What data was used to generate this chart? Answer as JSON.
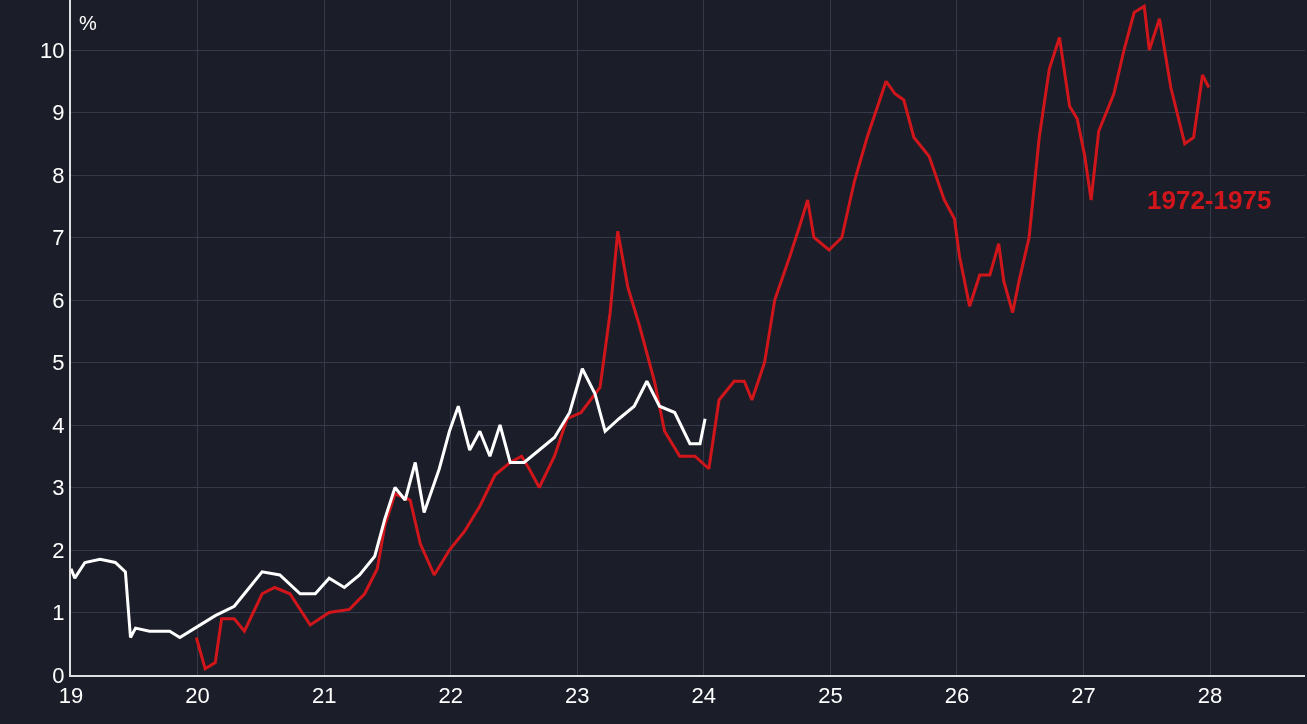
{
  "chart_data": {
    "type": "line",
    "ylabel": "%",
    "xlim": [
      19,
      28.75
    ],
    "ylim": [
      0,
      10.8
    ],
    "xticks": [
      19,
      20,
      21,
      22,
      23,
      24,
      25,
      26,
      27,
      28
    ],
    "yticks": [
      0,
      1,
      2,
      3,
      4,
      5,
      6,
      7,
      8,
      9,
      10
    ],
    "grid": true,
    "legend": false,
    "marker": "none",
    "line_style": "solid",
    "series": [
      {
        "name": "1972-1975",
        "color": "#d0161b",
        "x": [
          19.99,
          20.06,
          20.14,
          20.19,
          20.29,
          20.37,
          20.51,
          20.61,
          20.73,
          20.89,
          21.04,
          21.2,
          21.32,
          21.42,
          21.48,
          21.56,
          21.68,
          21.76,
          21.87,
          21.99,
          22.11,
          22.23,
          22.35,
          22.47,
          22.56,
          22.62,
          22.7,
          22.82,
          22.92,
          23.03,
          23.18,
          23.26,
          23.32,
          23.4,
          23.49,
          23.61,
          23.69,
          23.81,
          23.93,
          24.04,
          24.12,
          24.24,
          24.32,
          24.38,
          24.48,
          24.56,
          24.68,
          24.76,
          24.82,
          24.87,
          24.99,
          25.09,
          25.19,
          25.29,
          25.39,
          25.44,
          25.51,
          25.58,
          25.66,
          25.78,
          25.9,
          25.98,
          26.02,
          26.1,
          26.18,
          26.26,
          26.33,
          26.37,
          26.44,
          26.49,
          26.57,
          26.65,
          26.73,
          26.81,
          26.89,
          26.95,
          27.01,
          27.06,
          27.12,
          27.24,
          27.32,
          27.4,
          27.48,
          27.52,
          27.6,
          27.69,
          27.8,
          27.87,
          27.94,
          27.99
        ],
        "values": [
          0.6,
          0.1,
          0.2,
          0.9,
          0.9,
          0.7,
          1.3,
          1.4,
          1.3,
          0.8,
          1.0,
          1.05,
          1.3,
          1.7,
          2.4,
          2.9,
          2.8,
          2.1,
          1.6,
          2.0,
          2.3,
          2.7,
          3.2,
          3.4,
          3.5,
          3.3,
          3.0,
          3.5,
          4.1,
          4.2,
          4.6,
          5.8,
          7.1,
          6.2,
          5.6,
          4.7,
          3.9,
          3.5,
          3.5,
          3.3,
          4.4,
          4.7,
          4.7,
          4.4,
          5.0,
          6.0,
          6.7,
          7.2,
          7.6,
          7.0,
          6.8,
          7.0,
          7.9,
          8.6,
          9.2,
          9.5,
          9.3,
          9.2,
          8.6,
          8.3,
          7.6,
          7.3,
          6.7,
          5.9,
          6.4,
          6.4,
          6.9,
          6.3,
          5.8,
          6.3,
          7.0,
          8.6,
          9.7,
          10.2,
          9.1,
          8.9,
          8.3,
          7.6,
          8.7,
          9.3,
          10.0,
          10.6,
          10.7,
          10.0,
          10.5,
          9.4,
          8.5,
          8.6,
          9.6,
          9.4
        ]
      },
      {
        "color": "#ffffff",
        "x": [
          19.0,
          19.03,
          19.11,
          19.23,
          19.35,
          19.43,
          19.47,
          19.51,
          19.62,
          19.78,
          19.86,
          19.98,
          20.14,
          20.29,
          20.41,
          20.51,
          20.65,
          20.81,
          20.93,
          21.04,
          21.16,
          21.28,
          21.4,
          21.48,
          21.56,
          21.64,
          21.72,
          21.79,
          21.91,
          21.99,
          22.06,
          22.15,
          22.23,
          22.31,
          22.39,
          22.47,
          22.58,
          22.7,
          22.82,
          22.94,
          23.04,
          23.14,
          23.22,
          23.33,
          23.45,
          23.55,
          23.65,
          23.77,
          23.89,
          23.97,
          24.01
        ],
        "values": [
          1.7,
          1.55,
          1.8,
          1.85,
          1.8,
          1.65,
          0.6,
          0.75,
          0.7,
          0.7,
          0.6,
          0.75,
          0.95,
          1.1,
          1.4,
          1.65,
          1.6,
          1.3,
          1.3,
          1.55,
          1.4,
          1.6,
          1.9,
          2.5,
          3.0,
          2.8,
          3.4,
          2.6,
          3.3,
          3.9,
          4.3,
          3.6,
          3.9,
          3.5,
          4.0,
          3.4,
          3.4,
          3.6,
          3.8,
          4.2,
          4.9,
          4.5,
          3.9,
          4.1,
          4.3,
          4.7,
          4.3,
          4.2,
          3.7,
          3.7,
          4.1
        ]
      }
    ]
  }
}
